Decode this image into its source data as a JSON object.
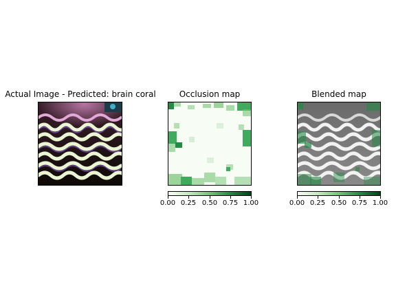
{
  "panels": [
    {
      "title": "Actual Image - Predicted: brain coral",
      "image": "brain-coral-photo"
    },
    {
      "title": "Occlusion map",
      "image": "occlusion-heatmap"
    },
    {
      "title": "Blended map",
      "image": "blended-heatmap"
    }
  ],
  "colorbar": {
    "colormap": "Greens",
    "range": [
      0.0,
      1.0
    ],
    "ticks": [
      "0.00",
      "0.25",
      "0.50",
      "0.75",
      "1.00"
    ],
    "colors": {
      "low": "#f7fcf5",
      "mid": "#74c476",
      "high": "#00441b"
    }
  }
}
